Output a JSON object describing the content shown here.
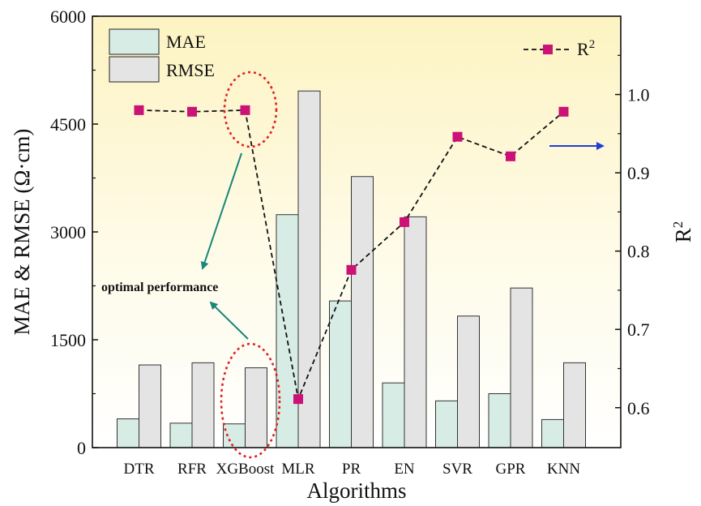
{
  "chart_data": {
    "type": "bar",
    "categories": [
      "DTR",
      "RFR",
      "XGBoost",
      "MLR",
      "PR",
      "EN",
      "SVR",
      "GPR",
      "KNN"
    ],
    "series": [
      {
        "name": "MAE",
        "axis": "left",
        "kind": "bar",
        "color": "#d7ece4",
        "values": [
          400,
          340,
          330,
          3240,
          2040,
          900,
          650,
          750,
          390
        ]
      },
      {
        "name": "RMSE",
        "axis": "left",
        "kind": "bar",
        "color": "#e4e4e4",
        "values": [
          1150,
          1180,
          1110,
          4960,
          3770,
          3210,
          1830,
          2220,
          1180
        ]
      },
      {
        "name": "R2",
        "axis": "right",
        "kind": "line-dashed-marker",
        "color": "#cc1177",
        "values": [
          0.98,
          0.978,
          0.98,
          0.611,
          0.776,
          0.837,
          0.946,
          0.921,
          0.978
        ]
      }
    ],
    "xlabel": "Algorithms",
    "ylabel": "MAE & RMSE (Ω·cm)",
    "y2label": "R",
    "y2label_sup": "2",
    "ylim": [
      0,
      6000
    ],
    "yticks": [
      "0",
      "1500",
      "3000",
      "4500",
      "6000"
    ],
    "y2lim": [
      0.549,
      1.1
    ],
    "y2ticks": [
      "0.6",
      "0.7",
      "0.8",
      "0.9",
      "1.0"
    ],
    "legend": {
      "mae": "MAE",
      "rmse": "RMSE",
      "r2": "R",
      "r2_sup": "2"
    },
    "annotation": "optimal performance",
    "colors": {
      "bg_top": "#fdf3c2",
      "bg_bottom": "#ffffff",
      "arrow_teal": "#17877a",
      "arrow_blue": "#1f3fd6",
      "highlight": "#e02020"
    }
  }
}
